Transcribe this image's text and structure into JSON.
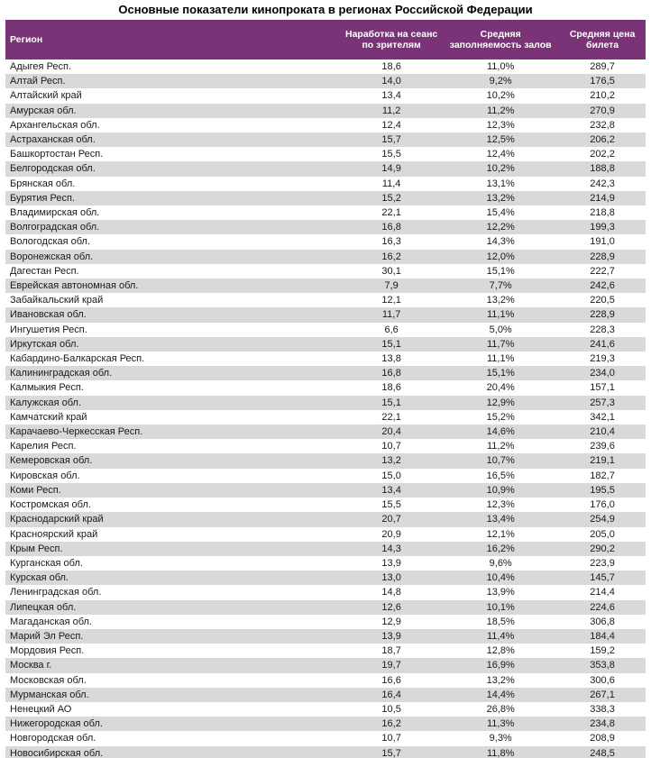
{
  "title": "Основные показатели кинопроката в регионах Российской Федерации",
  "colors": {
    "header_bg": "#7B3378",
    "header_text": "#FFFFFF",
    "row_alt_bg": "#D9D9D9",
    "text": "#1A1A1A"
  },
  "table": {
    "headers": [
      "Регион",
      "Наработка на сеанс по зрителям",
      "Средняя заполняемость залов",
      "Средняя цена билета"
    ],
    "rows": [
      [
        "Адыгея Респ.",
        "18,6",
        "11,0%",
        "289,7"
      ],
      [
        "Алтай Респ.",
        "14,0",
        "9,2%",
        "176,5"
      ],
      [
        "Алтайский край",
        "13,4",
        "10,2%",
        "210,2"
      ],
      [
        "Амурская обл.",
        "11,2",
        "11,2%",
        "270,9"
      ],
      [
        "Архангельская обл.",
        "12,4",
        "12,3%",
        "232,8"
      ],
      [
        "Астраханская обл.",
        "15,7",
        "12,5%",
        "206,2"
      ],
      [
        "Башкортостан Респ.",
        "15,5",
        "12,4%",
        "202,2"
      ],
      [
        "Белгородская обл.",
        "14,9",
        "10,2%",
        "188,8"
      ],
      [
        "Брянская обл.",
        "11,4",
        "13,1%",
        "242,3"
      ],
      [
        "Бурятия Респ.",
        "15,2",
        "13,2%",
        "214,9"
      ],
      [
        "Владимирская обл.",
        "22,1",
        "15,4%",
        "218,8"
      ],
      [
        "Волгоградская обл.",
        "16,8",
        "12,2%",
        "199,3"
      ],
      [
        "Вологодская обл.",
        "16,3",
        "14,3%",
        "191,0"
      ],
      [
        "Воронежская обл.",
        "16,2",
        "12,0%",
        "228,9"
      ],
      [
        "Дагестан Респ.",
        "30,1",
        "15,1%",
        "222,7"
      ],
      [
        "Еврейская автономная обл.",
        "7,9",
        "7,7%",
        "242,6"
      ],
      [
        "Забайкальский край",
        "12,1",
        "13,2%",
        "220,5"
      ],
      [
        "Ивановская обл.",
        "11,7",
        "11,1%",
        "228,9"
      ],
      [
        "Ингушетия Респ.",
        "6,6",
        "5,0%",
        "228,3"
      ],
      [
        "Иркутская обл.",
        "15,1",
        "11,7%",
        "241,6"
      ],
      [
        "Кабардино-Балкарская Респ.",
        "13,8",
        "11,1%",
        "219,3"
      ],
      [
        "Калининградская обл.",
        "16,8",
        "15,1%",
        "234,0"
      ],
      [
        "Калмыкия Респ.",
        "18,6",
        "20,4%",
        "157,1"
      ],
      [
        "Калужская обл.",
        "15,1",
        "12,9%",
        "257,3"
      ],
      [
        "Камчатский край",
        "22,1",
        "15,2%",
        "342,1"
      ],
      [
        "Карачаево-Черкесская Респ.",
        "20,4",
        "14,6%",
        "210,4"
      ],
      [
        "Карелия Респ.",
        "10,7",
        "11,2%",
        "239,6"
      ],
      [
        "Кемеровская обл.",
        "13,2",
        "10,7%",
        "219,1"
      ],
      [
        "Кировская обл.",
        "15,0",
        "16,5%",
        "182,7"
      ],
      [
        "Коми Респ.",
        "13,4",
        "10,9%",
        "195,5"
      ],
      [
        "Костромская обл.",
        "15,5",
        "12,3%",
        "176,0"
      ],
      [
        "Краснодарский край",
        "20,7",
        "13,4%",
        "254,9"
      ],
      [
        "Красноярский край",
        "20,9",
        "12,1%",
        "205,0"
      ],
      [
        "Крым Респ.",
        "14,3",
        "16,2%",
        "290,2"
      ],
      [
        "Курганская обл.",
        "13,9",
        "9,6%",
        "223,9"
      ],
      [
        "Курская обл.",
        "13,0",
        "10,4%",
        "145,7"
      ],
      [
        "Ленинградская обл.",
        "14,8",
        "13,9%",
        "214,4"
      ],
      [
        "Липецкая обл.",
        "12,6",
        "10,1%",
        "224,6"
      ],
      [
        "Магаданская обл.",
        "12,9",
        "18,5%",
        "306,8"
      ],
      [
        "Марий Эл Респ.",
        "13,9",
        "11,4%",
        "184,4"
      ],
      [
        "Мордовия Респ.",
        "18,7",
        "12,8%",
        "159,2"
      ],
      [
        "Москва г.",
        "19,7",
        "16,9%",
        "353,8"
      ],
      [
        "Московская обл.",
        "16,6",
        "13,2%",
        "300,6"
      ],
      [
        "Мурманская обл.",
        "16,4",
        "14,4%",
        "267,1"
      ],
      [
        "Ненецкий АО",
        "10,5",
        "26,8%",
        "338,3"
      ],
      [
        "Нижегородская обл.",
        "16,2",
        "11,3%",
        "234,8"
      ],
      [
        "Новгородская обл.",
        "10,7",
        "9,3%",
        "208,9"
      ],
      [
        "Новосибирская обл.",
        "15,7",
        "11,8%",
        "248,5"
      ]
    ]
  }
}
